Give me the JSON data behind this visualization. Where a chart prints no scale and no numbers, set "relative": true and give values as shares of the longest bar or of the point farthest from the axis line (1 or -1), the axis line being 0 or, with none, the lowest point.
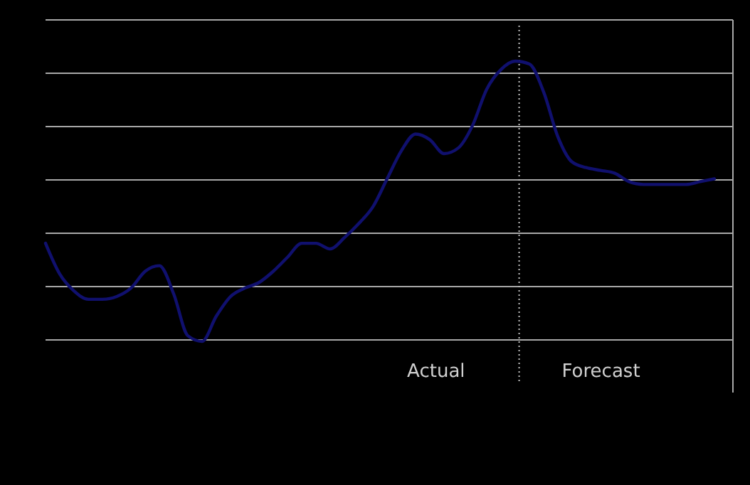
{
  "chart_data": {
    "type": "line",
    "relative": true,
    "grid": true,
    "categories": [
      null,
      null,
      null,
      null,
      null,
      null,
      null,
      null,
      null,
      null,
      null,
      null,
      null,
      null,
      null,
      null,
      null,
      null,
      null,
      null,
      null,
      null,
      null,
      null,
      null,
      null,
      null,
      null,
      null,
      null,
      null,
      null,
      null,
      null,
      null,
      null,
      null,
      null,
      null,
      null,
      null,
      null,
      null,
      null,
      null,
      null,
      null,
      null
    ],
    "series": [
      {
        "color": "#10106e",
        "values": [
          0.35,
          0.24,
          0.18,
          0.15,
          0.15,
          0.16,
          0.19,
          0.25,
          0.27,
          0.17,
          0.02,
          0,
          0.09,
          0.16,
          0.19,
          0.21,
          0.25,
          0.3,
          0.35,
          0.35,
          0.33,
          0.37,
          0.42,
          0.48,
          0.58,
          0.68,
          0.74,
          0.72,
          0.67,
          0.69,
          0.77,
          0.9,
          0.97,
          1,
          0.99,
          0.89,
          0.73,
          0.64,
          0.62,
          0.61,
          0.6,
          0.57,
          0.56,
          0.56,
          0.56,
          0.56,
          0.57,
          0.58
        ]
      }
    ],
    "annotations": [
      "Actual",
      "Forecast"
    ]
  }
}
